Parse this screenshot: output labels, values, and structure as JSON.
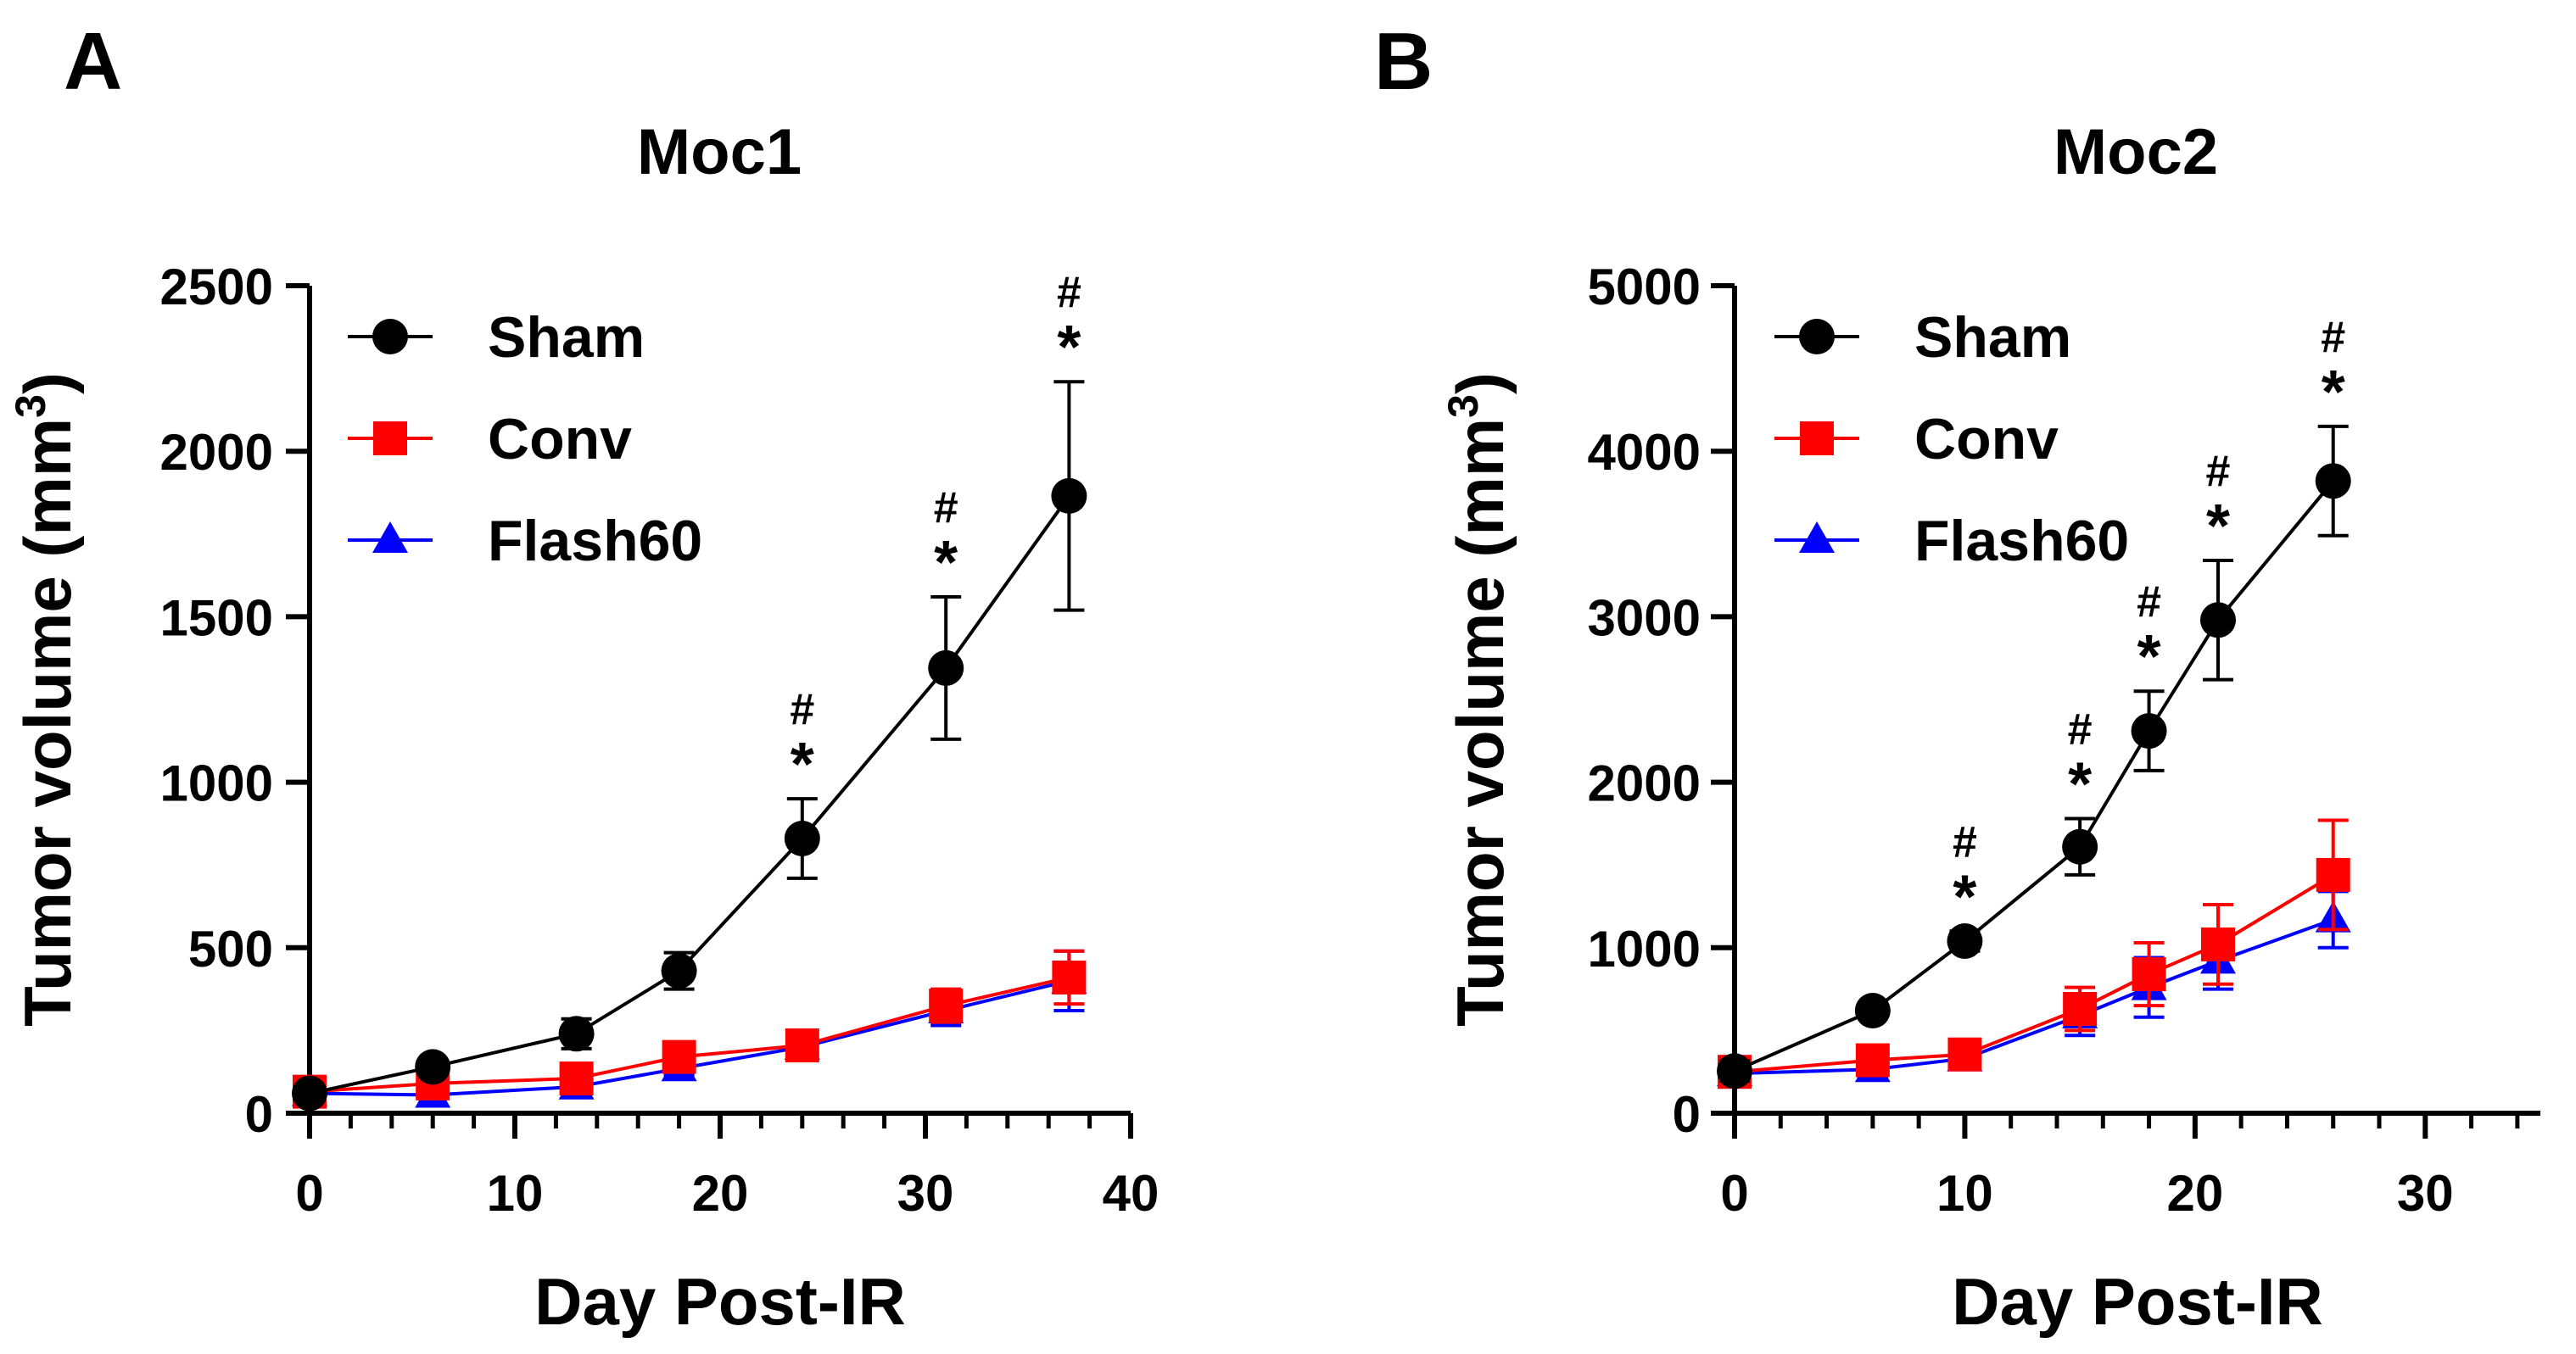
{
  "chart_data": [
    {
      "panel_label": "A",
      "type": "line",
      "title": "Moc1",
      "xlabel": "Day Post-IR",
      "ylabel": "Tumor volume (mm",
      "ylabel_sup": "3",
      "ylabel_close": ")",
      "xlim": [
        0,
        40
      ],
      "ylim": [
        0,
        2500
      ],
      "x_ticks": [
        0,
        10,
        20,
        30,
        40
      ],
      "x_tick_labels": [
        "0",
        "10",
        "20",
        "30",
        "40"
      ],
      "x_minor_step": 2,
      "y_ticks": [
        0,
        500,
        1000,
        1500,
        2000,
        2500
      ],
      "y_tick_labels": [
        "0",
        "500",
        "1000",
        "1500",
        "2000",
        "2500"
      ],
      "legend_position": "top-left",
      "x": [
        0,
        6,
        13,
        18,
        24,
        31,
        37
      ],
      "series": [
        {
          "name": "Sham",
          "color": "#000000",
          "marker": "circle",
          "values": [
            60,
            140,
            240,
            430,
            830,
            1345,
            1865
          ],
          "errors": [
            15,
            20,
            45,
            55,
            120,
            215,
            345
          ]
        },
        {
          "name": "Conv",
          "color": "#ff0000",
          "marker": "square",
          "values": [
            65,
            90,
            105,
            170,
            205,
            325,
            410
          ],
          "errors": [
            10,
            15,
            20,
            25,
            25,
            50,
            80
          ]
        },
        {
          "name": "Flash60",
          "color": "#0000ff",
          "marker": "triangle",
          "values": [
            60,
            55,
            80,
            135,
            200,
            310,
            400
          ],
          "errors": [
            10,
            10,
            15,
            20,
            25,
            45,
            90
          ]
        }
      ],
      "significance": [
        {
          "x": 24,
          "marks": [
            "#",
            "*"
          ]
        },
        {
          "x": 31,
          "marks": [
            "#",
            "*"
          ]
        },
        {
          "x": 37,
          "marks": [
            "#",
            "*"
          ]
        }
      ]
    },
    {
      "panel_label": "B",
      "type": "line",
      "title": "Moc2",
      "xlabel": "Day Post-IR",
      "ylabel": "Tumor volume (mm",
      "ylabel_sup": "3",
      "ylabel_close": ")",
      "xlim": [
        0,
        35
      ],
      "ylim": [
        0,
        5000
      ],
      "x_ticks": [
        0,
        10,
        20,
        30
      ],
      "x_tick_labels": [
        "0",
        "10",
        "20",
        "30"
      ],
      "x_minor_step": 2,
      "y_ticks": [
        0,
        1000,
        2000,
        3000,
        4000,
        5000
      ],
      "y_tick_labels": [
        "0",
        "1000",
        "2000",
        "3000",
        "4000",
        "5000"
      ],
      "legend_position": "top-left",
      "x": [
        0,
        6,
        10,
        15,
        18,
        21,
        26
      ],
      "series": [
        {
          "name": "Sham",
          "color": "#000000",
          "marker": "circle",
          "values": [
            255,
            620,
            1040,
            1610,
            2310,
            2980,
            3820
          ],
          "errors": [
            60,
            40,
            60,
            170,
            240,
            360,
            330
          ]
        },
        {
          "name": "Conv",
          "color": "#ff0000",
          "marker": "square",
          "values": [
            250,
            320,
            355,
            630,
            840,
            1020,
            1440
          ],
          "errors": [
            40,
            50,
            60,
            130,
            190,
            240,
            330
          ]
        },
        {
          "name": "Flash60",
          "color": "#0000ff",
          "marker": "triangle",
          "values": [
            240,
            265,
            330,
            590,
            760,
            920,
            1170
          ],
          "errors": [
            40,
            50,
            60,
            120,
            180,
            170,
            170
          ]
        }
      ],
      "significance": [
        {
          "x": 10,
          "marks": [
            "#",
            "*"
          ]
        },
        {
          "x": 15,
          "marks": [
            "#",
            "*"
          ]
        },
        {
          "x": 18,
          "marks": [
            "#",
            "*"
          ]
        },
        {
          "x": 21,
          "marks": [
            "#",
            "*"
          ]
        },
        {
          "x": 26,
          "marks": [
            "#",
            "*"
          ]
        }
      ]
    }
  ]
}
